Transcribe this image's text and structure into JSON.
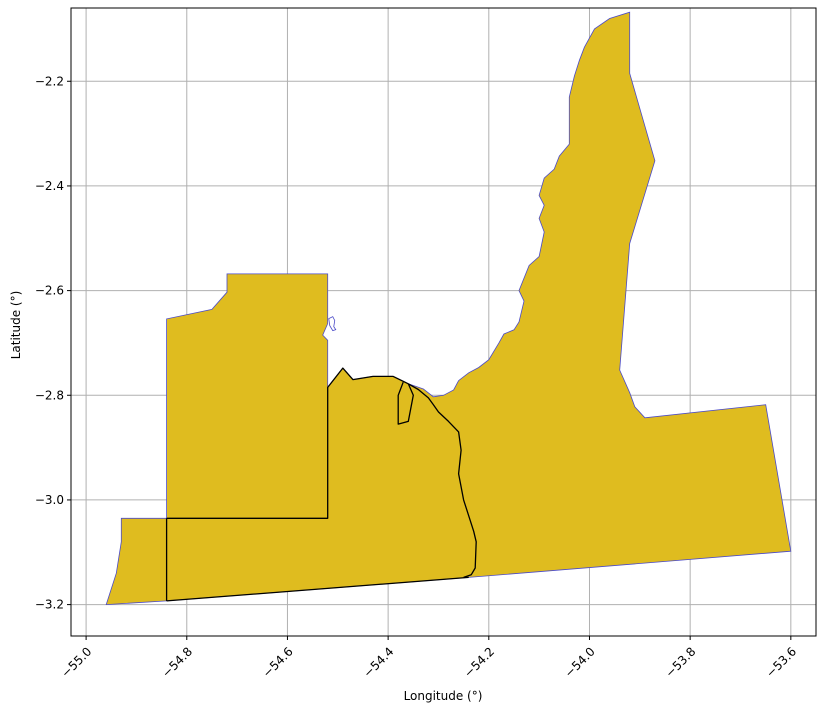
{
  "map": {
    "xlabel": "Longitude (°)",
    "ylabel": "Latitude (°)",
    "xlim": [
      -55.03,
      -53.55
    ],
    "ylim": [
      -3.26,
      -2.06
    ],
    "xticks": [
      {
        "value": -55.0,
        "label": "−55.0"
      },
      {
        "value": -54.8,
        "label": "−54.8"
      },
      {
        "value": -54.6,
        "label": "−54.6"
      },
      {
        "value": -54.4,
        "label": "−54.4"
      },
      {
        "value": -54.2,
        "label": "−54.2"
      },
      {
        "value": -54.0,
        "label": "−54.0"
      },
      {
        "value": -53.8,
        "label": "−53.8"
      },
      {
        "value": -53.6,
        "label": "−53.6"
      }
    ],
    "yticks": [
      {
        "value": -2.2,
        "label": "−2.2"
      },
      {
        "value": -2.4,
        "label": "−2.4"
      },
      {
        "value": -2.6,
        "label": "−2.6"
      },
      {
        "value": -2.8,
        "label": "−2.8"
      },
      {
        "value": -3.0,
        "label": "−3.0"
      },
      {
        "value": -3.2,
        "label": "−3.2"
      }
    ],
    "grid": true,
    "colors": {
      "region_fill": "#dfbc1f",
      "region_edge": "#4b4bc8",
      "boundary": "#000000",
      "grid": "#b0b0b0"
    },
    "region_outline": [
      [
        -54.96,
        -3.2
      ],
      [
        -54.94,
        -3.14
      ],
      [
        -54.93,
        -3.08
      ],
      [
        -54.93,
        -3.035
      ],
      [
        -54.84,
        -3.035
      ],
      [
        -54.84,
        -2.654
      ],
      [
        -54.75,
        -2.636
      ],
      [
        -54.72,
        -2.603
      ],
      [
        -54.72,
        -2.568
      ],
      [
        -54.52,
        -2.568
      ],
      [
        -54.52,
        -2.663
      ],
      [
        -54.53,
        -2.685
      ],
      [
        -54.52,
        -2.695
      ],
      [
        -54.52,
        -2.785
      ],
      [
        -54.49,
        -2.748
      ],
      [
        -54.47,
        -2.77
      ],
      [
        -54.43,
        -2.764
      ],
      [
        -54.39,
        -2.764
      ],
      [
        -54.36,
        -2.778
      ],
      [
        -54.33,
        -2.788
      ],
      [
        -54.31,
        -2.803
      ],
      [
        -54.29,
        -2.8
      ],
      [
        -54.27,
        -2.79
      ],
      [
        -54.26,
        -2.772
      ],
      [
        -54.24,
        -2.757
      ],
      [
        -54.22,
        -2.747
      ],
      [
        -54.2,
        -2.732
      ],
      [
        -54.18,
        -2.7
      ],
      [
        -54.17,
        -2.683
      ],
      [
        -54.15,
        -2.675
      ],
      [
        -54.14,
        -2.66
      ],
      [
        -54.13,
        -2.62
      ],
      [
        -54.14,
        -2.6
      ],
      [
        -54.12,
        -2.552
      ],
      [
        -54.1,
        -2.535
      ],
      [
        -54.09,
        -2.488
      ],
      [
        -54.1,
        -2.462
      ],
      [
        -54.09,
        -2.437
      ],
      [
        -54.1,
        -2.418
      ],
      [
        -54.09,
        -2.385
      ],
      [
        -54.07,
        -2.368
      ],
      [
        -54.06,
        -2.343
      ],
      [
        -54.04,
        -2.32
      ],
      [
        -54.04,
        -2.282
      ],
      [
        -54.04,
        -2.23
      ],
      [
        -54.03,
        -2.19
      ],
      [
        -54.02,
        -2.16
      ],
      [
        -54.01,
        -2.135
      ],
      [
        -53.99,
        -2.1
      ],
      [
        -53.96,
        -2.08
      ],
      [
        -53.92,
        -2.068
      ],
      [
        -53.92,
        -2.185
      ],
      [
        -53.87,
        -2.352
      ],
      [
        -53.92,
        -2.51
      ],
      [
        -53.94,
        -2.752
      ],
      [
        -53.92,
        -2.795
      ],
      [
        -53.91,
        -2.822
      ],
      [
        -53.89,
        -2.843
      ],
      [
        -53.65,
        -2.818
      ],
      [
        -53.6,
        -3.098
      ],
      [
        -54.24,
        -3.148
      ],
      [
        -54.84,
        -3.193
      ]
    ],
    "boundary_lines": [
      [
        [
          -54.84,
          -3.035
        ],
        [
          -54.52,
          -3.035
        ],
        [
          -54.52,
          -2.785
        ],
        [
          -54.49,
          -2.748
        ],
        [
          -54.47,
          -2.77
        ],
        [
          -54.43,
          -2.764
        ],
        [
          -54.39,
          -2.764
        ],
        [
          -54.36,
          -2.778
        ]
      ],
      [
        [
          -54.36,
          -2.778
        ],
        [
          -54.34,
          -2.789
        ],
        [
          -54.32,
          -2.805
        ],
        [
          -54.31,
          -2.818
        ],
        [
          -54.3,
          -2.832
        ],
        [
          -54.28,
          -2.85
        ],
        [
          -54.26,
          -2.87
        ],
        [
          -54.255,
          -2.905
        ],
        [
          -54.26,
          -2.95
        ],
        [
          -54.25,
          -3.0
        ],
        [
          -54.23,
          -3.06
        ],
        [
          -54.225,
          -3.08
        ],
        [
          -54.227,
          -3.13
        ],
        [
          -54.235,
          -3.143
        ],
        [
          -54.25,
          -3.148
        ]
      ],
      [
        [
          -54.84,
          -3.035
        ],
        [
          -54.84,
          -3.193
        ]
      ],
      [
        [
          -54.84,
          -3.193
        ],
        [
          -54.24,
          -3.148
        ]
      ],
      [
        [
          -54.37,
          -2.775
        ],
        [
          -54.38,
          -2.8
        ],
        [
          -54.38,
          -2.855
        ],
        [
          -54.36,
          -2.85
        ],
        [
          -54.35,
          -2.8
        ],
        [
          -54.36,
          -2.778
        ]
      ]
    ]
  }
}
